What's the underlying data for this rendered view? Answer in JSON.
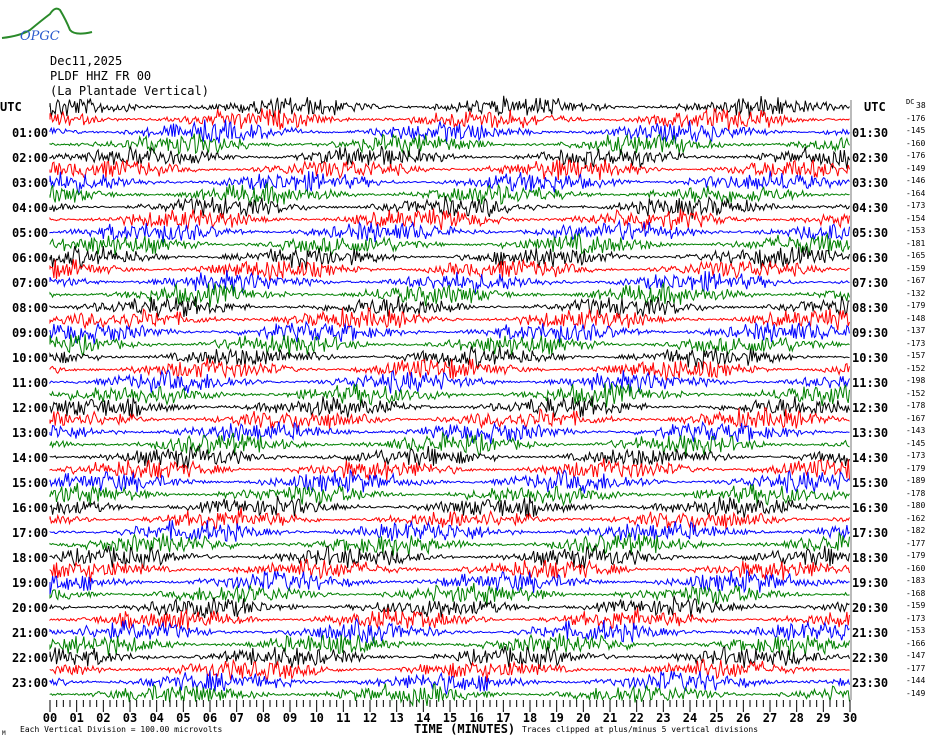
{
  "header": {
    "logo_text": "OPGC",
    "date": "Dec11,2025",
    "station": "PLDF HHZ FR 00",
    "station_name": "(La Plantade Vertical)"
  },
  "left_axis": {
    "title": "UTC",
    "labels": [
      "01:00",
      "02:00",
      "03:00",
      "04:00",
      "05:00",
      "06:00",
      "07:00",
      "08:00",
      "09:00",
      "10:00",
      "11:00",
      "12:00",
      "13:00",
      "14:00",
      "15:00",
      "16:00",
      "17:00",
      "18:00",
      "19:00",
      "20:00",
      "21:00",
      "22:00",
      "23:00"
    ]
  },
  "right_axis": {
    "title": "UTC",
    "dc_label": "DC",
    "labels": [
      "01:30",
      "02:30",
      "03:30",
      "04:30",
      "05:30",
      "06:30",
      "07:30",
      "08:30",
      "09:30",
      "10:30",
      "11:30",
      "12:30",
      "13:30",
      "14:30",
      "15:30",
      "16:30",
      "17:30",
      "18:30",
      "19:30",
      "20:30",
      "21:30",
      "22:30",
      "23:30"
    ]
  },
  "chart_data": {
    "type": "line",
    "xlabel": "TIME (MINUTES)",
    "xlim": [
      0,
      30
    ],
    "x_ticks": [
      "00",
      "01",
      "02",
      "03",
      "04",
      "05",
      "06",
      "07",
      "08",
      "09",
      "10",
      "11",
      "12",
      "13",
      "14",
      "15",
      "16",
      "17",
      "18",
      "19",
      "20",
      "21",
      "22",
      "23",
      "24",
      "25",
      "26",
      "27",
      "28",
      "29",
      "30"
    ],
    "trace_colors": [
      "#000000",
      "#ff0000",
      "#0000ff",
      "#008000"
    ],
    "trace_count": 48,
    "trace_minutes": 30,
    "dc_offsets": [
      "38",
      "-176",
      "-145",
      "-160",
      "-176",
      "-149",
      "-146",
      "-164",
      "-173",
      "-154",
      "-153",
      "-181",
      "-165",
      "-159",
      "-167",
      "-132",
      "-179",
      "-148",
      "-137",
      "-173",
      "-157",
      "-152",
      "-198",
      "-152",
      "-178",
      "-167",
      "-143",
      "-145",
      "-173",
      "-179",
      "-189",
      "-178",
      "-180",
      "-162",
      "-182",
      "-177",
      "-179",
      "-160",
      "-183",
      "-168",
      "-159",
      "-173",
      "-153",
      "-166",
      "-147",
      "-177",
      "-144",
      "-149"
    ]
  },
  "footer": {
    "corner": "M",
    "scale_note": "Each Vertical Division =  100.00 microvolts",
    "clip_note": "Traces clipped at plus/minus 5 vertical divisions"
  }
}
